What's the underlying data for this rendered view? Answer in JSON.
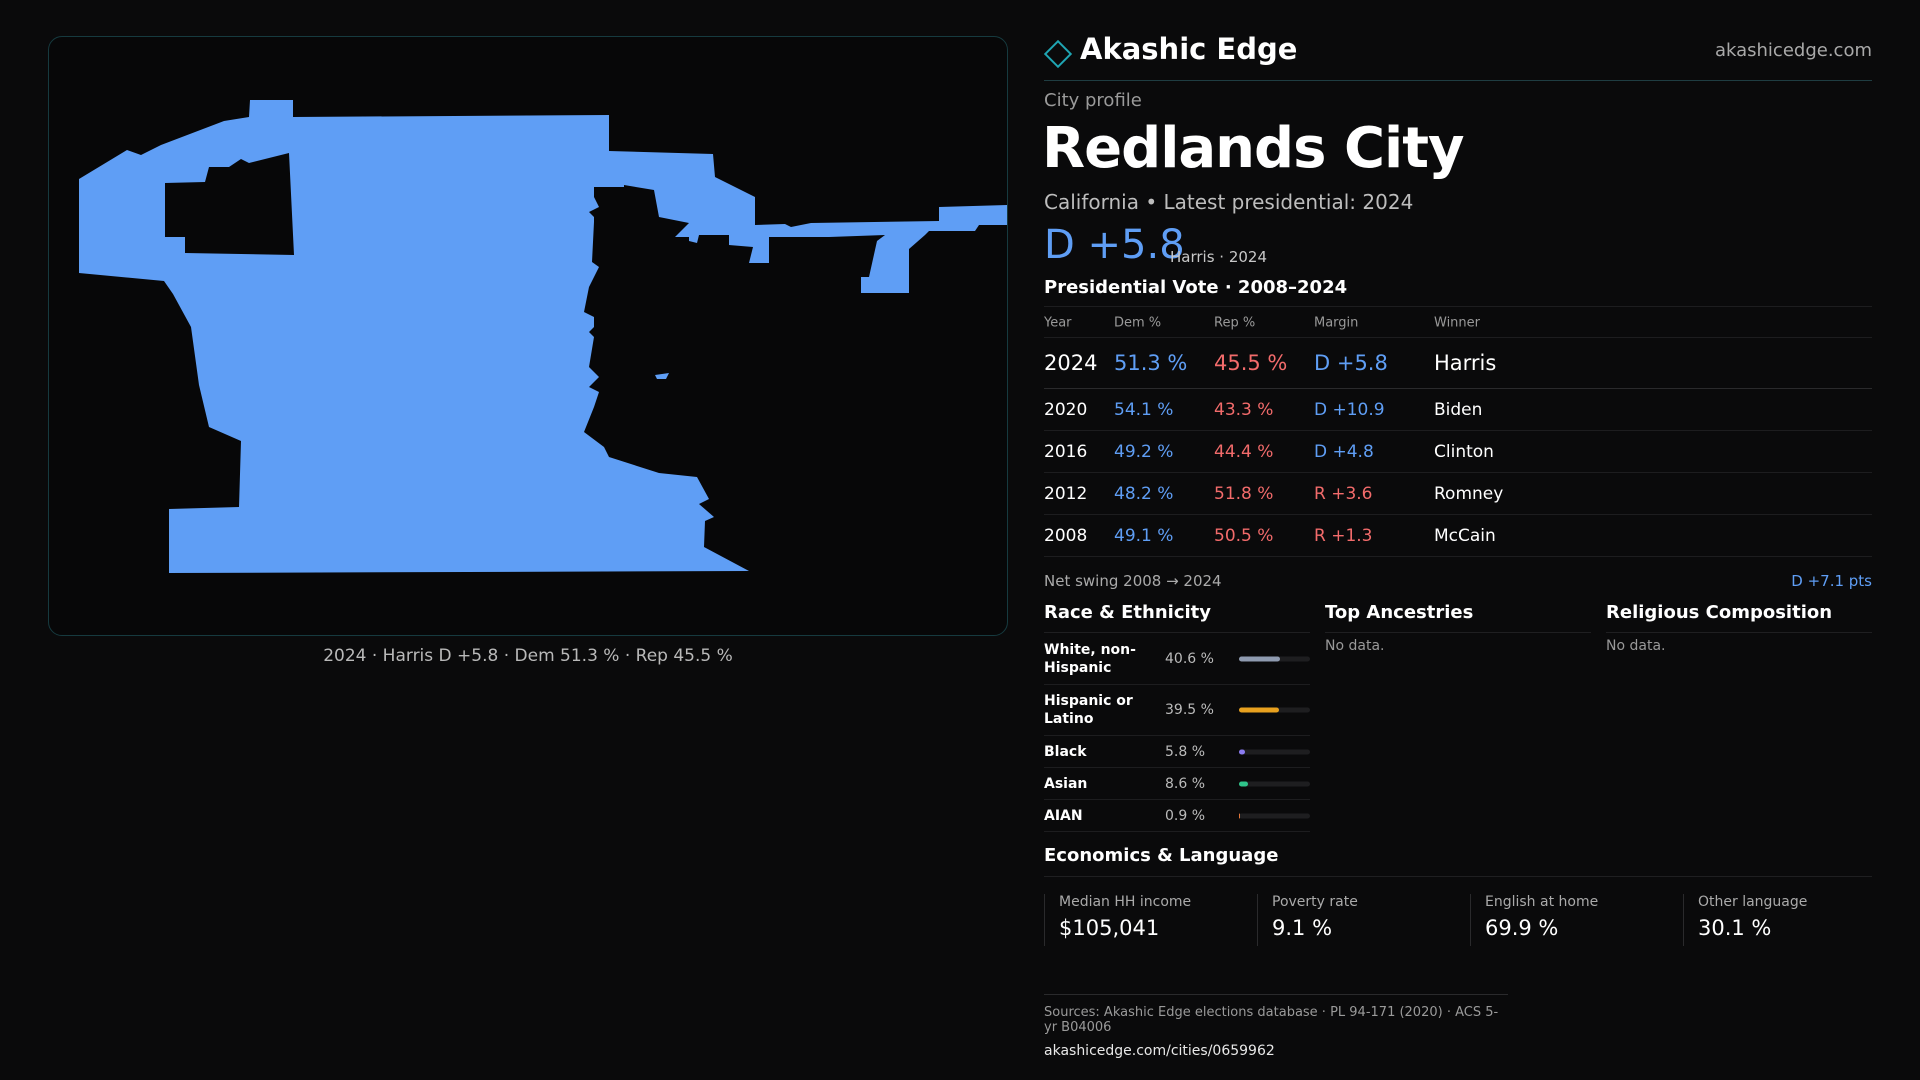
{
  "brand": {
    "name": "Akashic Edge",
    "url": "akashicedge.com"
  },
  "profile": {
    "eyebrow": "City profile",
    "title": "Redlands City",
    "subtitle": "California • Latest presidential: 2024",
    "margin": "D +5.8",
    "margin_note": "Harris · 2024"
  },
  "map": {
    "caption": "2024 · Harris D +5.8 · Dem 51.3 % · Rep 45.5 %",
    "fill_color": "#5f9ef5"
  },
  "vote_table": {
    "title": "Presidential Vote · 2008–2024",
    "headers": {
      "year": "Year",
      "dem": "Dem %",
      "rep": "Rep %",
      "margin": "Margin",
      "winner": "Winner"
    },
    "rows": [
      {
        "year": "2024",
        "dem": "51.3 %",
        "rep": "45.5 %",
        "margin": "D +5.8",
        "margin_party": "dem",
        "winner": "Harris"
      },
      {
        "year": "2020",
        "dem": "54.1 %",
        "rep": "43.3 %",
        "margin": "D +10.9",
        "margin_party": "dem",
        "winner": "Biden"
      },
      {
        "year": "2016",
        "dem": "49.2 %",
        "rep": "44.4 %",
        "margin": "D +4.8",
        "margin_party": "dem",
        "winner": "Clinton"
      },
      {
        "year": "2012",
        "dem": "48.2 %",
        "rep": "51.8 %",
        "margin": "R +3.6",
        "margin_party": "rep",
        "winner": "Romney"
      },
      {
        "year": "2008",
        "dem": "49.1 %",
        "rep": "50.5 %",
        "margin": "R +1.3",
        "margin_party": "rep",
        "winner": "McCain"
      }
    ]
  },
  "swing": {
    "label": "Net swing 2008 → 2024",
    "value": "D +7.1 pts"
  },
  "race": {
    "title": "Race & Ethnicity",
    "rows": [
      {
        "label": "White, non-Hispanic",
        "pct": "40.6 %",
        "value": 40.6,
        "color": "#8f9bb0"
      },
      {
        "label": "Hispanic or Latino",
        "pct": "39.5 %",
        "value": 39.5,
        "color": "#e8a11f"
      },
      {
        "label": "Black",
        "pct": "5.8 %",
        "value": 5.8,
        "color": "#8b7cf0"
      },
      {
        "label": "Asian",
        "pct": "8.6 %",
        "value": 8.6,
        "color": "#2fc48a"
      },
      {
        "label": "AIAN",
        "pct": "0.9 %",
        "value": 0.9,
        "color": "#e0763a"
      }
    ]
  },
  "ancestries": {
    "title": "Top Ancestries",
    "empty": "No data."
  },
  "religion": {
    "title": "Religious Composition",
    "empty": "No data."
  },
  "economics": {
    "title": "Economics & Language",
    "cells": [
      {
        "label": "Median HH income",
        "value": "$105,041"
      },
      {
        "label": "Poverty rate",
        "value": "9.1 %"
      },
      {
        "label": "English at home",
        "value": "69.9 %"
      },
      {
        "label": "Other language",
        "value": "30.1 %"
      }
    ]
  },
  "sources": {
    "text": "Sources: Akashic Edge elections database · PL 94-171 (2020) · ACS 5-yr B04006",
    "url": "akashicedge.com/cities/0659962"
  }
}
